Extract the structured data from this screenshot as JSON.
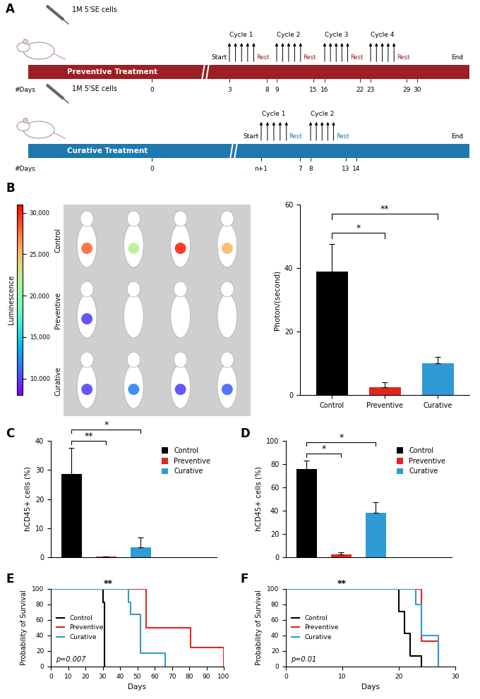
{
  "timeline": {
    "panel": "A",
    "rows": [
      {
        "title": "Preventive Treatment",
        "injection": "1M 5'SE cells",
        "days_label": "#Days",
        "days": [
          "0",
          "3",
          "8",
          "9",
          "15",
          "16",
          "22",
          "23",
          "29",
          "30"
        ],
        "start": "Start",
        "end": "End",
        "cycles": [
          "Cycle 1",
          "Cycle 2",
          "Cycle 3",
          "Cycle 4"
        ],
        "rest": "Rest",
        "color": "#9b1f23"
      },
      {
        "title": "Curative Treatment",
        "injection": "1M 5'SE cells",
        "days_label": "#Days",
        "days": [
          "0",
          "n+1",
          "7",
          "8",
          "13",
          "14"
        ],
        "start": "Start",
        "end": "End",
        "cycles": [
          "Cycle 1",
          "Cycle 2"
        ],
        "rest": "Rest",
        "color": "#1f78b0"
      }
    ]
  },
  "imaging": {
    "panel": "B",
    "colorbar": {
      "title": "Luminescence",
      "range": [
        8000,
        31000
      ],
      "ticks": [
        {
          "value": 10000,
          "label": "10,000"
        },
        {
          "value": 15000,
          "label": "15,000"
        },
        {
          "value": 20000,
          "label": "20,000"
        },
        {
          "value": 25000,
          "label": "25,000"
        },
        {
          "value": 30000,
          "label": "30,000"
        }
      ]
    },
    "rows": [
      "Control",
      "Preventive",
      "Curative"
    ],
    "signal": [
      [
        28000,
        22000,
        30000,
        25000
      ],
      [
        10000,
        null,
        null,
        null
      ],
      [
        10000,
        12000,
        10000,
        11000
      ]
    ]
  },
  "chart_data": [
    {
      "type": "bar",
      "y_label": "Photon/(second)",
      "categories": [
        "Control",
        "Preventive",
        "Curative"
      ],
      "values": [
        39,
        2.5,
        10
      ],
      "errors": [
        8.5,
        1.5,
        2
      ],
      "colors": [
        "#000000",
        "#e3261c",
        "#2f9bd6"
      ],
      "ylim": [
        0,
        60
      ],
      "yticks": [
        0,
        20,
        40,
        60
      ],
      "annotations": [
        {
          "text": "*",
          "categories": [
            "Control",
            "Preventive"
          ]
        },
        {
          "text": "**",
          "categories": [
            "Control",
            "Curative"
          ]
        }
      ]
    },
    {
      "type": "bar",
      "panel": "C",
      "y_label": "hCD45+ cells (%)",
      "categories": [
        "Control",
        "Preventive",
        "Curative"
      ],
      "values": [
        28.5,
        0.2,
        3.5
      ],
      "errors": [
        9,
        0.1,
        3.3
      ],
      "colors": [
        "#000000",
        "#e3261c",
        "#2f9bd6"
      ],
      "ylim": [
        0,
        40
      ],
      "yticks": [
        0,
        10,
        20,
        30,
        40
      ],
      "tick_labels": "y",
      "legend": "upper right",
      "annotations": [
        {
          "text": "**",
          "categories": [
            "Control",
            "Preventive"
          ]
        },
        {
          "text": "*",
          "categories": [
            "Control",
            "Curative"
          ]
        }
      ]
    },
    {
      "type": "bar",
      "panel": "D",
      "y_label": "hCD45+ cells (%)",
      "categories": [
        "Control",
        "Preventive",
        "Curative"
      ],
      "values": [
        76,
        2.5,
        38
      ],
      "errors": [
        7,
        1.5,
        9
      ],
      "colors": [
        "#000000",
        "#e3261c",
        "#2f9bd6"
      ],
      "ylim": [
        0,
        100
      ],
      "yticks": [
        0,
        20,
        40,
        60,
        80,
        100
      ],
      "tick_labels": "y",
      "legend": "upper right",
      "annotations": [
        {
          "text": "*",
          "categories": [
            "Control",
            "Preventive"
          ]
        },
        {
          "text": "*",
          "categories": [
            "Control",
            "Curative"
          ]
        }
      ]
    },
    {
      "type": "step",
      "panel": "E",
      "x_label": "Days",
      "y_label": "Probability of Survival",
      "series": [
        {
          "name": "Control",
          "color": "#000000",
          "x": [
            0,
            30,
            31
          ],
          "values": [
            100,
            83,
            0
          ]
        },
        {
          "name": "Preventive",
          "color": "#e3261c",
          "x": [
            0,
            55,
            81,
            100
          ],
          "values": [
            100,
            50,
            25,
            0
          ]
        },
        {
          "name": "Curative",
          "color": "#2f9bd6",
          "x": [
            0,
            45,
            46,
            52,
            66
          ],
          "values": [
            100,
            83,
            67,
            17,
            0
          ]
        }
      ],
      "xlim": [
        0,
        100
      ],
      "xticks": [
        0,
        10,
        20,
        30,
        40,
        50,
        60,
        70,
        80,
        90,
        100
      ],
      "ylim": [
        0,
        100
      ],
      "yticks": [
        0,
        20,
        40,
        60,
        80,
        100
      ],
      "legend": "center left",
      "annotations": [
        "**",
        "p=0.007"
      ]
    },
    {
      "type": "step",
      "panel": "F",
      "x_label": "Days",
      "y_label": "Probability of Survival",
      "series": [
        {
          "name": "Control",
          "color": "#000000",
          "x": [
            0,
            20,
            21,
            22,
            24
          ],
          "values": [
            100,
            71,
            43,
            14,
            0
          ]
        },
        {
          "name": "Preventive",
          "color": "#e3261c",
          "x": [
            0,
            24,
            27
          ],
          "values": [
            100,
            33,
            0
          ]
        },
        {
          "name": "Curative",
          "color": "#2f9bd6",
          "x": [
            0,
            23,
            24,
            27
          ],
          "values": [
            100,
            80,
            40,
            0
          ]
        }
      ],
      "xlim": [
        0,
        30
      ],
      "xticks": [
        0,
        10,
        20,
        30
      ],
      "ylim": [
        0,
        100
      ],
      "yticks": [
        0,
        20,
        40,
        60,
        80,
        100
      ],
      "legend": "center left",
      "annotations": [
        "**",
        "p=0.01"
      ]
    }
  ]
}
